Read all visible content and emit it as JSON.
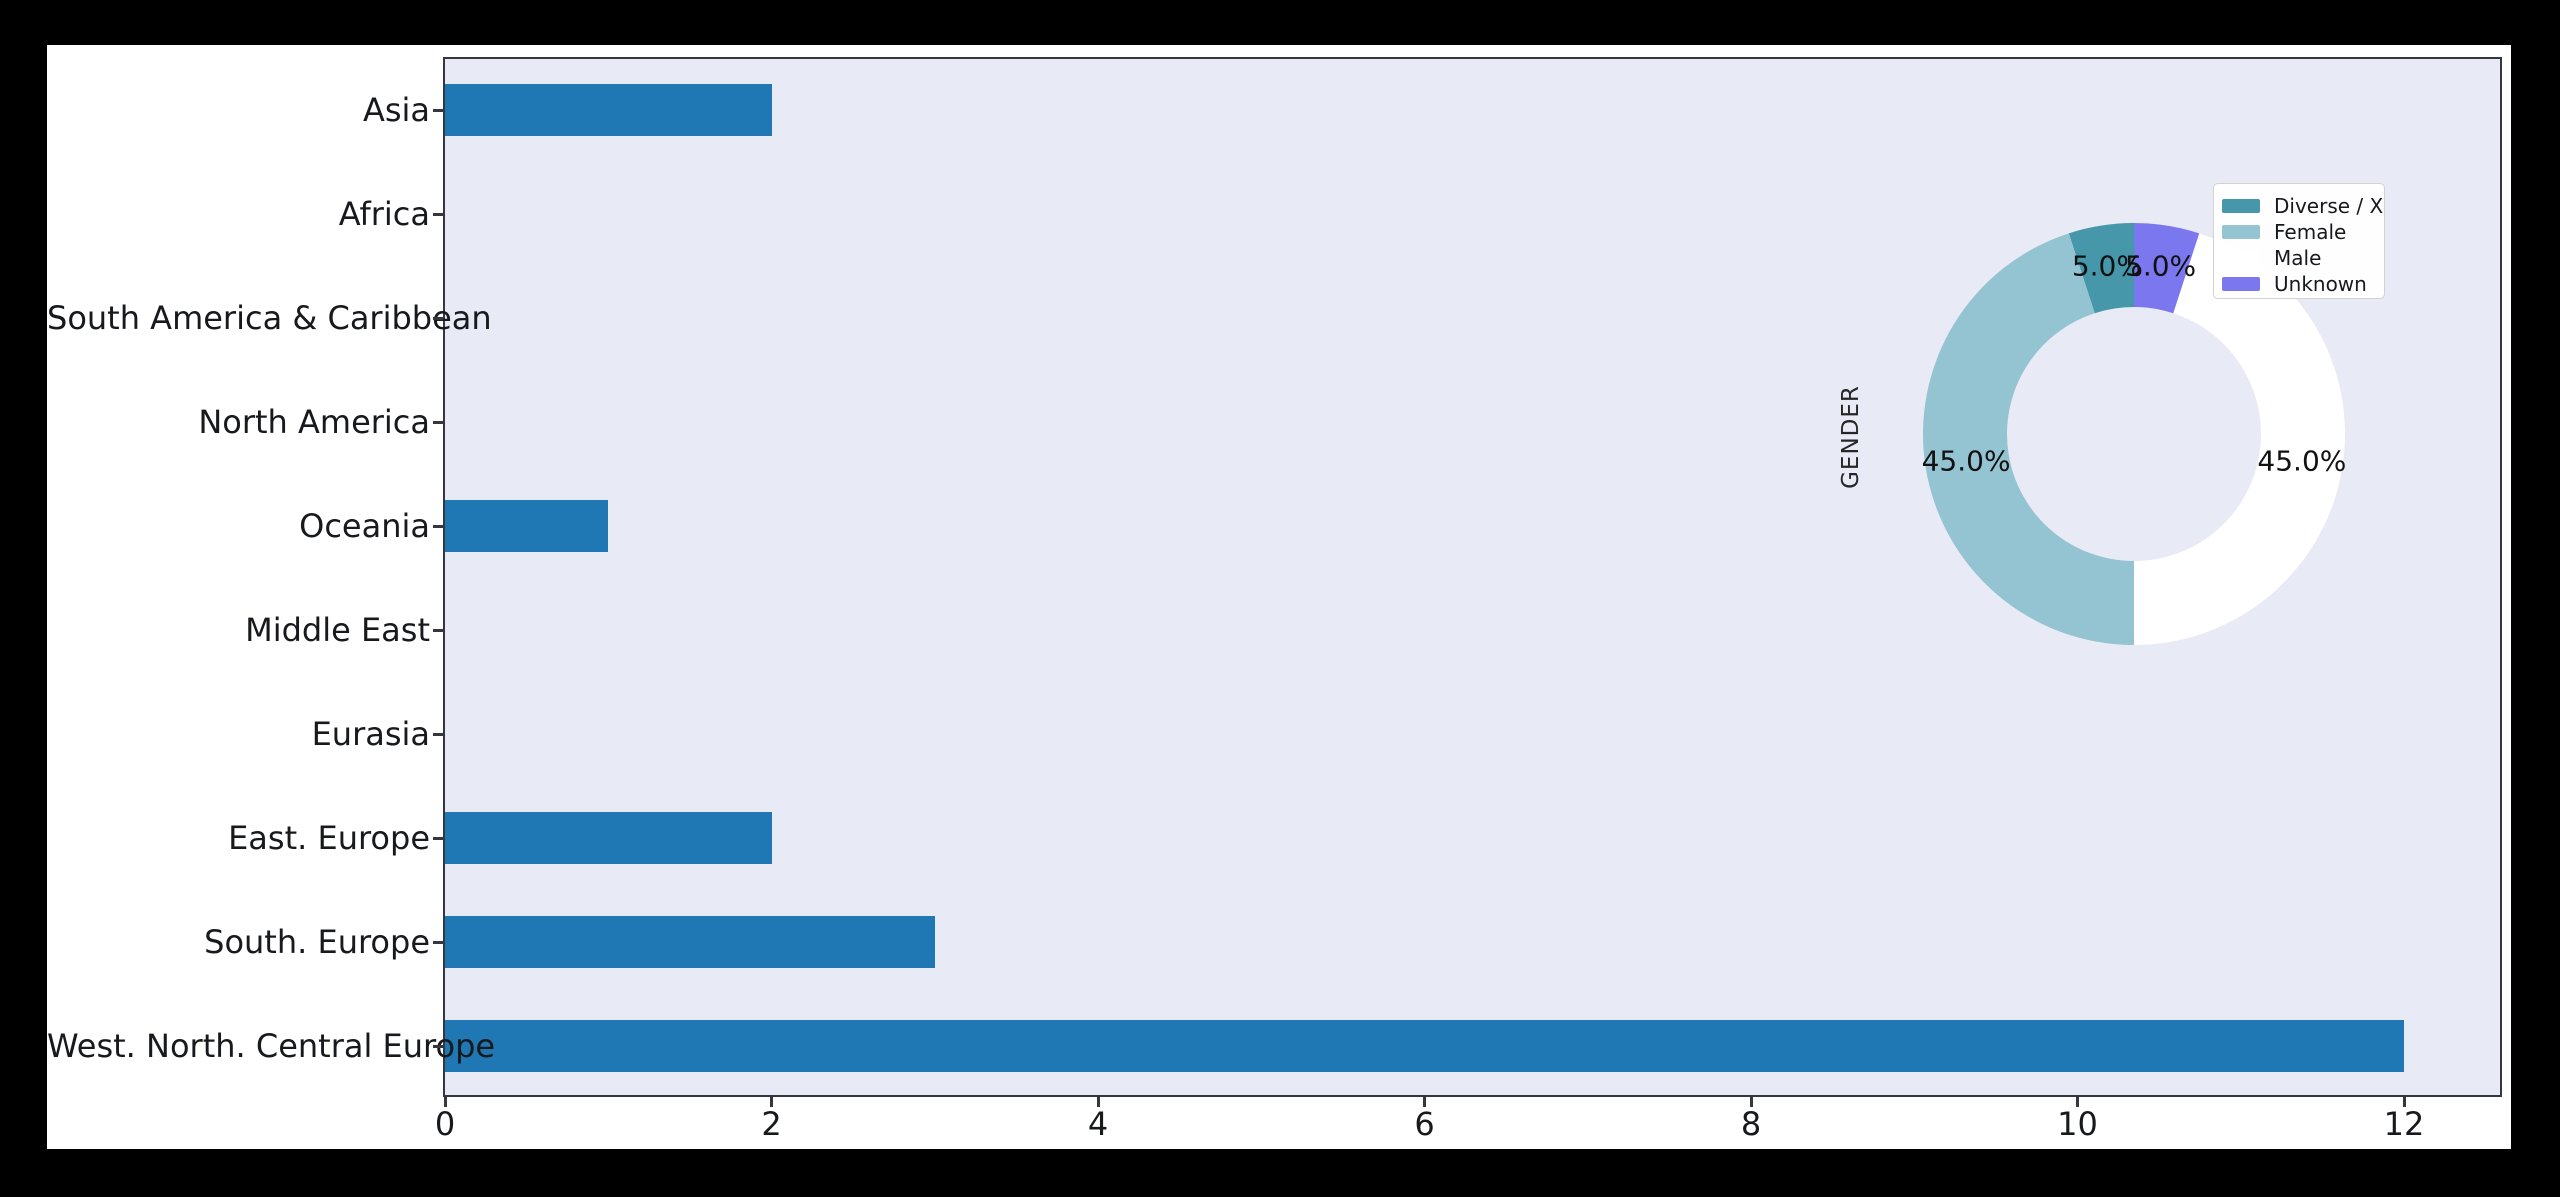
{
  "figure": {
    "background": "#000000",
    "facecolor": "#ffffff"
  },
  "chart_data": [
    {
      "type": "bar",
      "orientation": "horizontal",
      "title": "",
      "xlabel": "",
      "ylabel": "",
      "categories": [
        "Asia",
        "Africa",
        "South America & Caribbean",
        "North America",
        "Oceania",
        "Middle East",
        "Eurasia",
        "East. Europe",
        "South. Europe",
        "West. North. Central Europe"
      ],
      "values": [
        2,
        0,
        0,
        0,
        1,
        0,
        0,
        2,
        3,
        12
      ],
      "xticks": [
        0,
        2,
        4,
        6,
        8,
        10,
        12
      ],
      "xlim": [
        0,
        12.6
      ],
      "grid": false,
      "bar_color": "#1f77b4",
      "plot_background": "#e8eaf6",
      "spine_color": "#34373e"
    },
    {
      "type": "pie",
      "subtype": "donut",
      "title": "GENDER",
      "labels": [
        "Diverse / X",
        "Female",
        "Male",
        "Unknown"
      ],
      "values": [
        5.0,
        45.0,
        45.0,
        5.0
      ],
      "pct_labels": [
        "5.0%",
        "45.0%",
        "45.0%",
        "5.0%"
      ],
      "colors": [
        "#4697aa",
        "#94c3d1",
        "#ffffff",
        "#7b77ee"
      ],
      "start_angle": 90,
      "counterclockwise": true,
      "donut_hole_ratio": 0.6,
      "legend_entries": [
        "Diverse / X",
        "Female",
        "Male",
        "Unknown"
      ],
      "legend_position": "upper right"
    }
  ]
}
